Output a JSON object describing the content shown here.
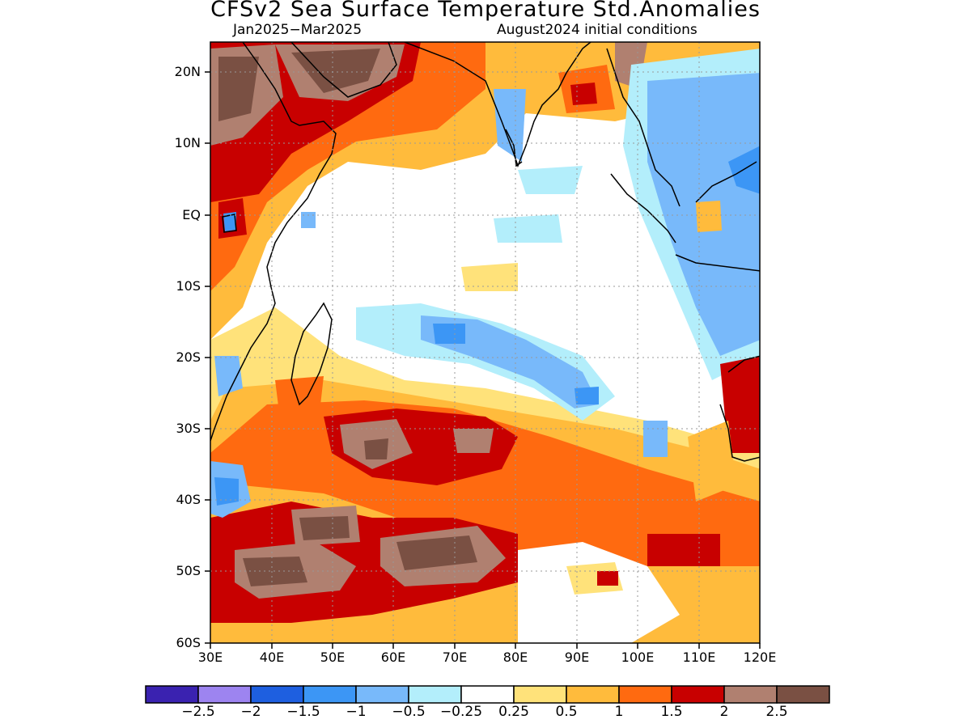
{
  "title": "CFSv2 Sea Surface Temperature Std.Anomalies",
  "subtitle_left": "Jan2025−Mar2025",
  "subtitle_right": "August2024 initial conditions",
  "lat_ticks": [
    "20N",
    "10N",
    "EQ",
    "10S",
    "20S",
    "30S",
    "40S",
    "50S",
    "60S"
  ],
  "lon_ticks": [
    "30E",
    "40E",
    "50E",
    "60E",
    "70E",
    "80E",
    "90E",
    "100E",
    "110E",
    "120E"
  ],
  "colorbar": {
    "colors": [
      "#3a22b0",
      "#9d84f0",
      "#1e5fe0",
      "#3c96f5",
      "#78b9fa",
      "#b3eefb",
      "#ffffff",
      "#ffe27a",
      "#ffbb3c",
      "#ff6a10",
      "#c80000",
      "#b08070",
      "#7a5043"
    ],
    "labels": [
      "−2.5",
      "−2",
      "−1.5",
      "−1",
      "−0.5",
      "−0.25",
      "0.25",
      "0.5",
      "1",
      "1.5",
      "2",
      "2.5"
    ]
  }
}
